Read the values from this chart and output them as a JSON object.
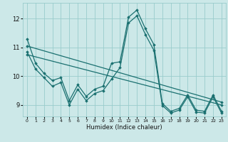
{
  "xlabel": "Humidex (Indice chaleur)",
  "bg_color": "#cce8e8",
  "grid_color": "#99cccc",
  "line_color": "#1a7070",
  "xlim": [
    -0.5,
    23.5
  ],
  "ylim": [
    8.6,
    12.55
  ],
  "yticks": [
    9,
    10,
    11,
    12
  ],
  "xticks": [
    0,
    1,
    2,
    3,
    4,
    5,
    6,
    7,
    8,
    9,
    10,
    11,
    12,
    13,
    14,
    15,
    16,
    17,
    18,
    19,
    20,
    21,
    22,
    23
  ],
  "series_main": {
    "x": [
      0,
      1,
      2,
      3,
      4,
      5,
      6,
      7,
      8,
      9,
      10,
      11,
      12,
      13,
      14,
      15,
      16,
      17,
      18,
      19,
      20,
      21,
      22,
      23
    ],
    "y": [
      11.3,
      10.45,
      10.1,
      9.85,
      9.95,
      9.15,
      9.7,
      9.3,
      9.55,
      9.65,
      10.45,
      10.5,
      12.05,
      12.3,
      11.65,
      11.1,
      9.05,
      8.78,
      8.88,
      9.35,
      8.82,
      8.78,
      9.35,
      8.78
    ]
  },
  "series_trend1": {
    "x": [
      0,
      23
    ],
    "y": [
      11.05,
      9.1
    ]
  },
  "series_trend2": {
    "x": [
      0,
      23
    ],
    "y": [
      10.75,
      9.0
    ]
  },
  "series_lower": {
    "x": [
      0,
      1,
      2,
      3,
      4,
      5,
      6,
      7,
      8,
      9,
      10,
      11,
      12,
      13,
      14,
      15,
      16,
      17,
      18,
      19,
      20,
      21,
      22,
      23
    ],
    "y": [
      10.85,
      10.25,
      9.95,
      9.65,
      9.78,
      9.0,
      9.55,
      9.15,
      9.4,
      9.5,
      9.9,
      10.3,
      11.85,
      12.1,
      11.45,
      10.9,
      8.98,
      8.72,
      8.82,
      9.28,
      8.75,
      8.72,
      9.28,
      8.72
    ]
  }
}
